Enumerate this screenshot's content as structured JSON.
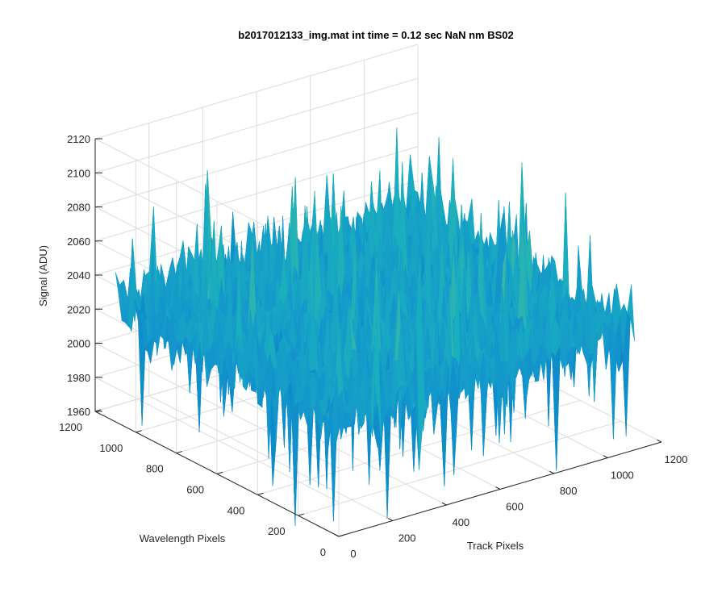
{
  "chart_data": {
    "type": "surface",
    "title": "b2017012133_img.mat int time = 0.12 sec  NaN nm BS02",
    "xlabel": "Track Pixels",
    "ylabel": "Wavelength Pixels",
    "zlabel": "Signal (ADU)",
    "xlim": [
      0,
      1200
    ],
    "ylim": [
      0,
      1200
    ],
    "zlim": [
      1960,
      2120
    ],
    "xticks": [
      0,
      200,
      400,
      600,
      800,
      1000,
      1200
    ],
    "yticks": [
      0,
      200,
      400,
      600,
      800,
      1000,
      1200
    ],
    "zticks": [
      1960,
      1980,
      2000,
      2020,
      2040,
      2060,
      2080,
      2100,
      2120
    ],
    "data_extent": {
      "x": [
        0,
        1100
      ],
      "y": [
        0,
        1100
      ]
    },
    "surface_baseline": 2030,
    "noise_range": [
      1970,
      2110
    ],
    "grid": true,
    "colormap": "parula",
    "colors": {
      "low": "#0072bd",
      "mid": "#1aa6c0",
      "high": "#e8d24a"
    }
  }
}
